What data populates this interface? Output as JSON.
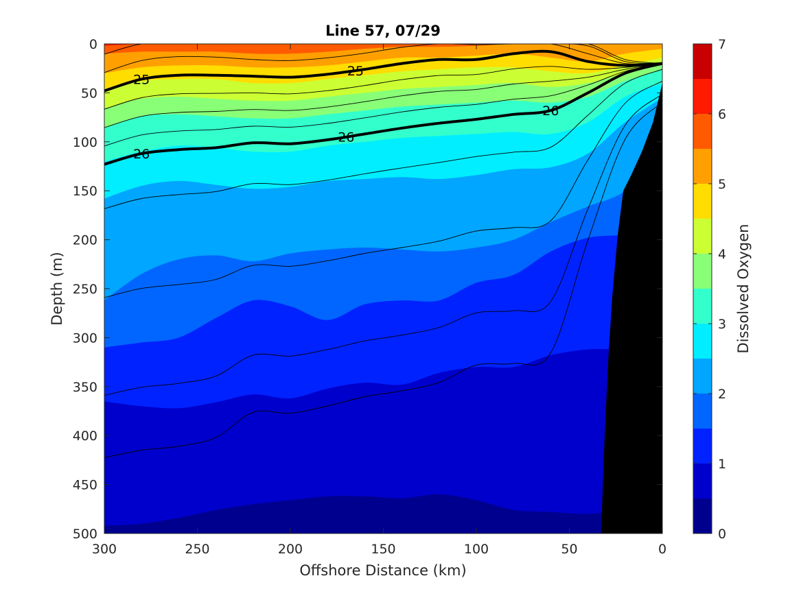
{
  "chart_data": {
    "type": "heatmap",
    "subtype": "filled-contour section",
    "title": "Line 57, 07/29",
    "xlabel": "Offshore Distance (km)",
    "ylabel": "Depth (m)",
    "xlim": [
      300,
      0
    ],
    "ylim": [
      0,
      500
    ],
    "x_reversed": true,
    "y_reversed": true,
    "xticks": [
      300,
      250,
      200,
      150,
      100,
      50,
      0
    ],
    "yticks": [
      0,
      50,
      100,
      150,
      200,
      250,
      300,
      350,
      400,
      450,
      500
    ],
    "colorbar": {
      "label": "Dissolved Oxygen",
      "range": [
        0,
        7
      ],
      "ticks": [
        0,
        1,
        2,
        3,
        4,
        5,
        6,
        7
      ],
      "levels": [
        0,
        0.5,
        1,
        1.5,
        2,
        2.5,
        3,
        3.5,
        4,
        4.5,
        5,
        5.5,
        6,
        6.5,
        7
      ],
      "colors": [
        "#00008f",
        "#0000cc",
        "#0022ff",
        "#0066ff",
        "#00a6ff",
        "#00eeff",
        "#33ffcc",
        "#88ff77",
        "#ccff33",
        "#ffdd00",
        "#ffa000",
        "#ff5a00",
        "#ff1a00",
        "#c80000"
      ]
    },
    "x": [
      300,
      280,
      260,
      240,
      220,
      200,
      180,
      160,
      140,
      120,
      100,
      80,
      60,
      40,
      20,
      0
    ],
    "oxygen_isolines": [
      {
        "level": 6.5,
        "depth": [
          0,
          0,
          0,
          0,
          0,
          0,
          0,
          0,
          0,
          0,
          0,
          0,
          0,
          0,
          0,
          0
        ]
      },
      {
        "level": 6,
        "depth": [
          2,
          0,
          0,
          0,
          0,
          0,
          0,
          0,
          0,
          0,
          0,
          0,
          0,
          0,
          0,
          0
        ]
      },
      {
        "level": 5.5,
        "depth": [
          10,
          8,
          8,
          8,
          10,
          10,
          8,
          5,
          3,
          3,
          2,
          0,
          0,
          0,
          0,
          0
        ]
      },
      {
        "level": 5,
        "depth": [
          30,
          24,
          22,
          22,
          24,
          24,
          22,
          18,
          14,
          14,
          12,
          10,
          14,
          18,
          10,
          5
        ]
      },
      {
        "level": 4.5,
        "depth": [
          48,
          38,
          36,
          36,
          40,
          40,
          36,
          32,
          28,
          26,
          24,
          24,
          28,
          30,
          22,
          14
        ]
      },
      {
        "level": 4,
        "depth": [
          66,
          56,
          54,
          56,
          58,
          58,
          54,
          50,
          46,
          44,
          42,
          40,
          44,
          40,
          30,
          20
        ]
      },
      {
        "level": 3.5,
        "depth": [
          86,
          74,
          72,
          74,
          76,
          76,
          72,
          68,
          64,
          62,
          60,
          58,
          60,
          54,
          38,
          26
        ]
      },
      {
        "level": 3,
        "depth": [
          120,
          110,
          104,
          106,
          110,
          110,
          104,
          100,
          96,
          94,
          92,
          90,
          92,
          80,
          54,
          40
        ]
      },
      {
        "level": 2.5,
        "depth": [
          158,
          145,
          140,
          144,
          148,
          146,
          140,
          138,
          136,
          138,
          134,
          128,
          126,
          112,
          80,
          55
        ]
      },
      {
        "level": 2,
        "depth": [
          262,
          235,
          220,
          216,
          222,
          214,
          210,
          208,
          210,
          212,
          208,
          200,
          182,
          166,
          150,
          110
        ]
      },
      {
        "level": 1.5,
        "depth": [
          310,
          305,
          300,
          280,
          262,
          268,
          282,
          266,
          262,
          262,
          244,
          236,
          212,
          198,
          195,
          190
        ]
      },
      {
        "level": 1,
        "depth": [
          365,
          370,
          372,
          366,
          358,
          362,
          352,
          346,
          348,
          336,
          330,
          330,
          318,
          312,
          312,
          312
        ]
      },
      {
        "level": 0.5,
        "depth": [
          492,
          490,
          484,
          476,
          470,
          466,
          462,
          462,
          464,
          460,
          466,
          476,
          478,
          480,
          476,
          476
        ]
      }
    ],
    "density_contours": [
      {
        "level": 25,
        "labeled": true,
        "depth": [
          48,
          36,
          32,
          32,
          33,
          34,
          31,
          26,
          20,
          16,
          16,
          10,
          8,
          18,
          22,
          20
        ]
      },
      {
        "level": 26,
        "labeled": true,
        "depth": [
          123,
          112,
          108,
          106,
          101,
          102,
          98,
          92,
          86,
          81,
          77,
          72,
          68,
          50,
          30,
          20
        ]
      }
    ],
    "shelf_profile": {
      "distance_km": [
        33,
        31,
        29,
        27,
        24,
        21,
        17,
        11,
        5,
        0
      ],
      "depth_m": [
        500,
        400,
        320,
        260,
        195,
        150,
        135,
        110,
        80,
        40
      ]
    }
  }
}
